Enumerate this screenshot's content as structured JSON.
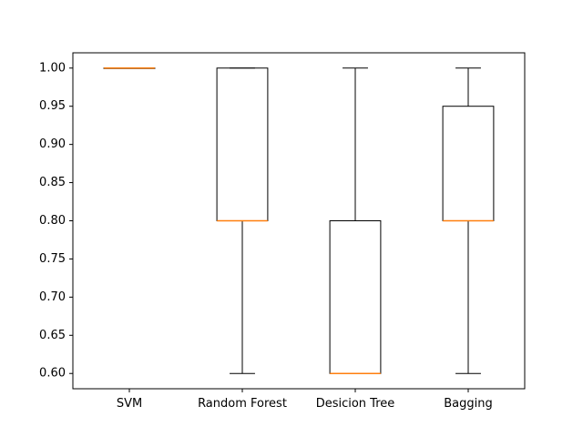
{
  "chart_data": {
    "type": "boxplot",
    "title": "",
    "xlabel": "",
    "ylabel": "",
    "categories": [
      "SVM",
      "Random Forest",
      "Desicion Tree",
      "Bagging"
    ],
    "boxes": [
      {
        "name": "SVM",
        "whisker_low": 1.0,
        "q1": 1.0,
        "median": 1.0,
        "q3": 1.0,
        "whisker_high": 1.0
      },
      {
        "name": "Random Forest",
        "whisker_low": 0.6,
        "q1": 0.8,
        "median": 0.8,
        "q3": 1.0,
        "whisker_high": 1.0
      },
      {
        "name": "Desicion Tree",
        "whisker_low": 0.6,
        "q1": 0.6,
        "median": 0.6,
        "q3": 0.8,
        "whisker_high": 1.0
      },
      {
        "name": "Bagging",
        "whisker_low": 0.6,
        "q1": 0.8,
        "median": 0.8,
        "q3": 0.95,
        "whisker_high": 1.0
      }
    ],
    "ylim": [
      0.58,
      1.02
    ],
    "yticks": [
      "0.60",
      "0.65",
      "0.70",
      "0.75",
      "0.80",
      "0.85",
      "0.90",
      "0.95",
      "1.00"
    ],
    "grid": false,
    "colors": {
      "box": "#000000",
      "median": "#ff7f0e",
      "axes": "#000000"
    }
  }
}
